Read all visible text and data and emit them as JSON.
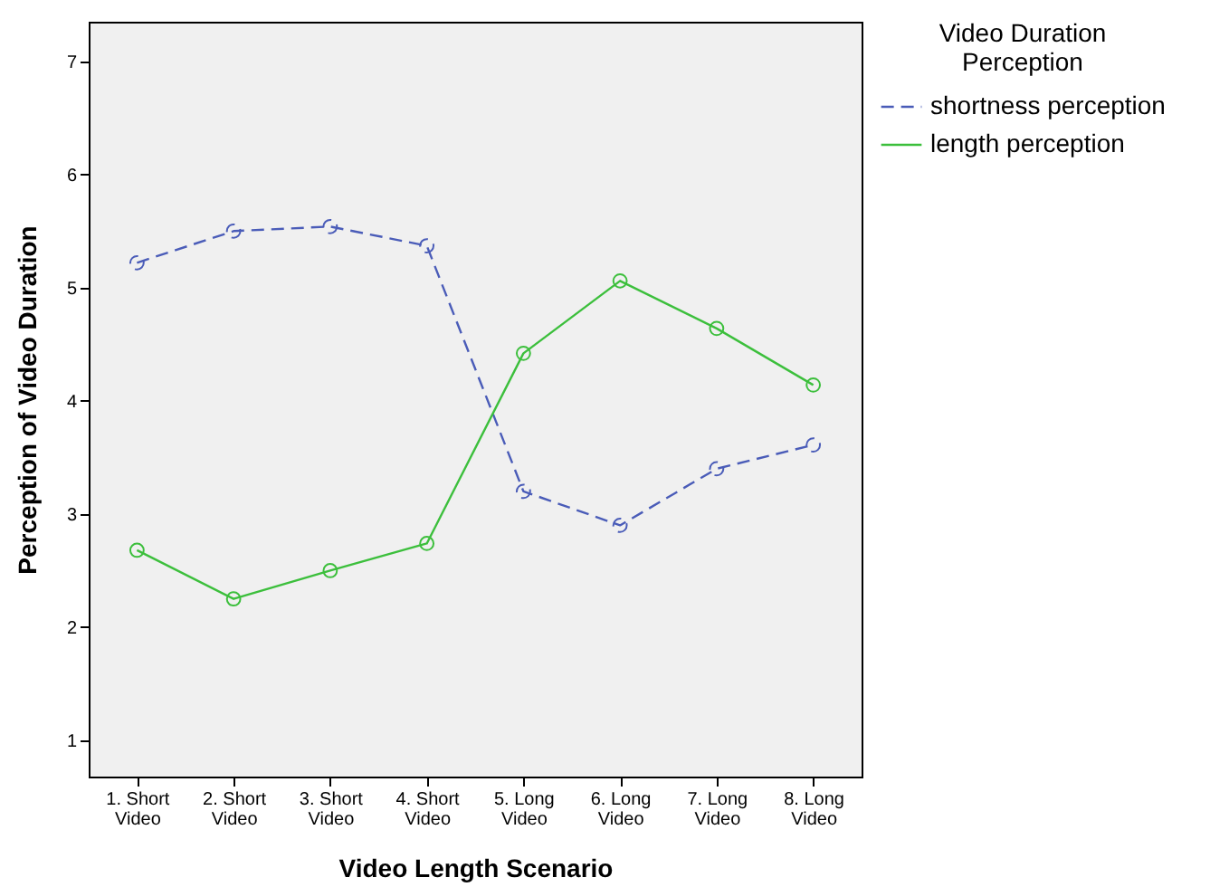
{
  "chart_data": {
    "type": "line",
    "xlabel": "Video Length Scenario",
    "ylabel": "Perception of Video Duration",
    "legend_title": "Video Duration Perception",
    "categories": [
      "1. Short Video",
      "2. Short Video",
      "3. Short Video",
      "4. Short Video",
      "5. Long Video",
      "6. Long Video",
      "7. Long Video",
      "8. Long Video"
    ],
    "series": [
      {
        "name": "shortness perception",
        "color": "#4a5cb8",
        "line_style": "dashed",
        "values": [
          5.22,
          5.5,
          5.54,
          5.37,
          3.2,
          2.9,
          3.4,
          3.61
        ]
      },
      {
        "name": "length perception",
        "color": "#3cbf3c",
        "line_style": "solid",
        "values": [
          2.68,
          2.25,
          2.5,
          2.74,
          4.42,
          5.06,
          4.64,
          4.14
        ]
      }
    ],
    "ylim": [
      0.68,
      7.35
    ],
    "yticks": [
      1,
      2,
      3,
      4,
      5,
      6,
      7
    ],
    "grid": false,
    "marker": "circle",
    "legend": "top right"
  }
}
